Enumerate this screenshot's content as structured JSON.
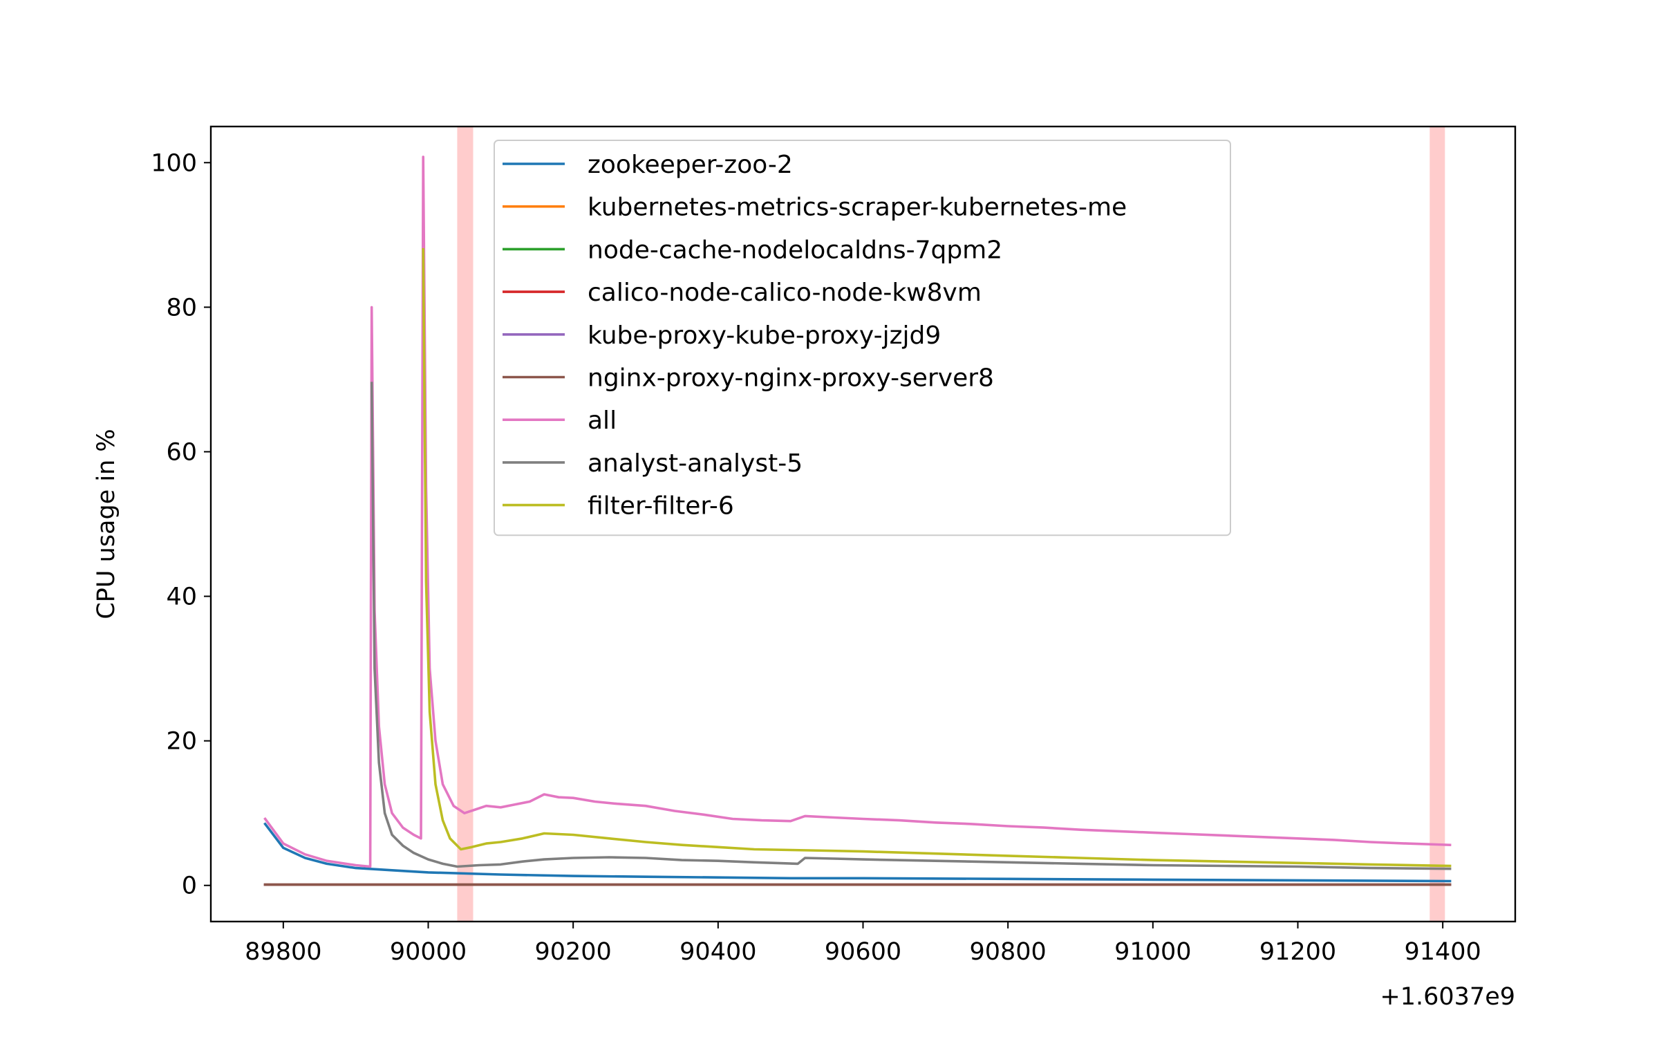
{
  "chart_data": {
    "type": "line",
    "title": "",
    "xlabel": "",
    "ylabel": "CPU usage in %",
    "x_offset_label": "+1.6037e9",
    "xlim": [
      89700,
      91500
    ],
    "ylim": [
      -5,
      105
    ],
    "xticks": [
      89800,
      90000,
      90200,
      90400,
      90600,
      90800,
      91000,
      91200,
      91400
    ],
    "yticks": [
      0,
      20,
      40,
      60,
      80,
      100
    ],
    "grid": false,
    "legend_position": "upper center",
    "highlight_bands": [
      {
        "x0": 90040,
        "x1": 90062,
        "color": "#ffcccc"
      },
      {
        "x0": 91382,
        "x1": 91403,
        "color": "#ffcccc"
      }
    ],
    "series": [
      {
        "name": "zookeeper-zoo-2",
        "color": "#1f77b4",
        "points": [
          [
            89775,
            8.5
          ],
          [
            89800,
            5.2
          ],
          [
            89830,
            3.8
          ],
          [
            89860,
            3.0
          ],
          [
            89900,
            2.4
          ],
          [
            89950,
            2.1
          ],
          [
            90000,
            1.8
          ],
          [
            90100,
            1.5
          ],
          [
            90200,
            1.3
          ],
          [
            90300,
            1.2
          ],
          [
            90400,
            1.1
          ],
          [
            90500,
            1.0
          ],
          [
            90600,
            1.0
          ],
          [
            90800,
            0.9
          ],
          [
            91000,
            0.8
          ],
          [
            91200,
            0.7
          ],
          [
            91410,
            0.6
          ]
        ]
      },
      {
        "name": "kubernetes-metrics-scraper-kubernetes-me",
        "color": "#ff7f0e",
        "points": [
          [
            89775,
            0.1
          ],
          [
            91410,
            0.1
          ]
        ]
      },
      {
        "name": "node-cache-nodelocaldns-7qpm2",
        "color": "#2ca02c",
        "points": [
          [
            89775,
            0.1
          ],
          [
            91410,
            0.1
          ]
        ]
      },
      {
        "name": "calico-node-calico-node-kw8vm",
        "color": "#d62728",
        "points": [
          [
            89775,
            0.1
          ],
          [
            91410,
            0.1
          ]
        ]
      },
      {
        "name": "kube-proxy-kube-proxy-jzjd9",
        "color": "#9467bd",
        "points": [
          [
            89775,
            0.1
          ],
          [
            91410,
            0.1
          ]
        ]
      },
      {
        "name": "nginx-proxy-nginx-proxy-server8",
        "color": "#8c564b",
        "points": [
          [
            89775,
            0.1
          ],
          [
            91410,
            0.1
          ]
        ]
      },
      {
        "name": "all",
        "color": "#e377c2",
        "points": [
          [
            89775,
            9.2
          ],
          [
            89800,
            5.8
          ],
          [
            89830,
            4.3
          ],
          [
            89860,
            3.4
          ],
          [
            89900,
            2.8
          ],
          [
            89920,
            2.6
          ],
          [
            89922,
            80.0
          ],
          [
            89926,
            38.0
          ],
          [
            89932,
            22.0
          ],
          [
            89940,
            14.0
          ],
          [
            89950,
            10.0
          ],
          [
            89965,
            8.0
          ],
          [
            89980,
            7.0
          ],
          [
            89990,
            6.5
          ],
          [
            89993,
            100.8
          ],
          [
            89997,
            55.0
          ],
          [
            90002,
            30.0
          ],
          [
            90010,
            20.0
          ],
          [
            90020,
            14.0
          ],
          [
            90035,
            11.0
          ],
          [
            90050,
            10.0
          ],
          [
            90065,
            10.5
          ],
          [
            90080,
            11.0
          ],
          [
            90100,
            10.8
          ],
          [
            90120,
            11.2
          ],
          [
            90140,
            11.6
          ],
          [
            90160,
            12.6
          ],
          [
            90180,
            12.2
          ],
          [
            90200,
            12.1
          ],
          [
            90230,
            11.6
          ],
          [
            90260,
            11.3
          ],
          [
            90300,
            11.0
          ],
          [
            90340,
            10.3
          ],
          [
            90380,
            9.8
          ],
          [
            90420,
            9.2
          ],
          [
            90460,
            9.0
          ],
          [
            90500,
            8.9
          ],
          [
            90520,
            9.6
          ],
          [
            90560,
            9.4
          ],
          [
            90600,
            9.2
          ],
          [
            90650,
            9.0
          ],
          [
            90700,
            8.7
          ],
          [
            90750,
            8.5
          ],
          [
            90800,
            8.2
          ],
          [
            90850,
            8.0
          ],
          [
            90900,
            7.7
          ],
          [
            90950,
            7.5
          ],
          [
            91000,
            7.3
          ],
          [
            91050,
            7.1
          ],
          [
            91100,
            6.9
          ],
          [
            91150,
            6.7
          ],
          [
            91200,
            6.5
          ],
          [
            91250,
            6.3
          ],
          [
            91300,
            6.0
          ],
          [
            91350,
            5.8
          ],
          [
            91410,
            5.6
          ]
        ]
      },
      {
        "name": "analyst-analyst-5",
        "color": "#7f7f7f",
        "points": [
          [
            89922,
            69.5
          ],
          [
            89926,
            30.0
          ],
          [
            89932,
            17.0
          ],
          [
            89940,
            10.0
          ],
          [
            89950,
            7.0
          ],
          [
            89965,
            5.5
          ],
          [
            89980,
            4.5
          ],
          [
            90000,
            3.6
          ],
          [
            90020,
            3.0
          ],
          [
            90040,
            2.6
          ],
          [
            90070,
            2.8
          ],
          [
            90100,
            2.9
          ],
          [
            90130,
            3.3
          ],
          [
            90160,
            3.6
          ],
          [
            90200,
            3.8
          ],
          [
            90250,
            3.9
          ],
          [
            90300,
            3.8
          ],
          [
            90350,
            3.5
          ],
          [
            90400,
            3.4
          ],
          [
            90450,
            3.2
          ],
          [
            90510,
            3.0
          ],
          [
            90520,
            3.8
          ],
          [
            90560,
            3.7
          ],
          [
            90600,
            3.6
          ],
          [
            90700,
            3.4
          ],
          [
            90800,
            3.2
          ],
          [
            90900,
            3.0
          ],
          [
            91000,
            2.8
          ],
          [
            91100,
            2.7
          ],
          [
            91200,
            2.6
          ],
          [
            91300,
            2.4
          ],
          [
            91410,
            2.3
          ]
        ]
      },
      {
        "name": "filter-filter-6",
        "color": "#bcbd22",
        "points": [
          [
            89993,
            88.0
          ],
          [
            89997,
            42.0
          ],
          [
            90002,
            24.0
          ],
          [
            90010,
            14.0
          ],
          [
            90020,
            9.0
          ],
          [
            90030,
            6.5
          ],
          [
            90045,
            5.0
          ],
          [
            90060,
            5.3
          ],
          [
            90080,
            5.8
          ],
          [
            90100,
            6.0
          ],
          [
            90130,
            6.5
          ],
          [
            90160,
            7.2
          ],
          [
            90200,
            7.0
          ],
          [
            90250,
            6.5
          ],
          [
            90300,
            6.0
          ],
          [
            90350,
            5.6
          ],
          [
            90400,
            5.3
          ],
          [
            90450,
            5.0
          ],
          [
            90500,
            4.9
          ],
          [
            90550,
            4.8
          ],
          [
            90600,
            4.7
          ],
          [
            90700,
            4.4
          ],
          [
            90800,
            4.1
          ],
          [
            90900,
            3.8
          ],
          [
            91000,
            3.5
          ],
          [
            91100,
            3.3
          ],
          [
            91200,
            3.1
          ],
          [
            91300,
            2.9
          ],
          [
            91410,
            2.7
          ]
        ]
      }
    ]
  }
}
